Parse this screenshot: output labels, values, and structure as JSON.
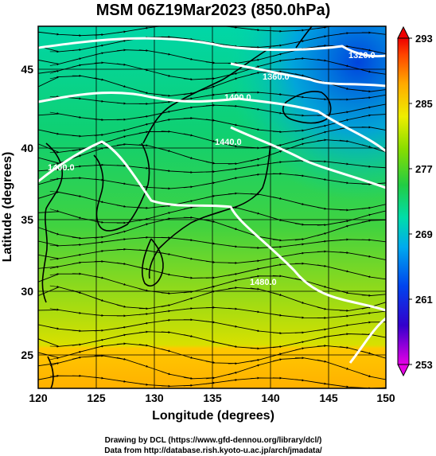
{
  "title": "MSM 06Z19Mar2023 (850.0hPa)",
  "axes": {
    "x_label": "Longitude (degrees)",
    "y_label": "Latitude  (degrees)",
    "x_ticks": [
      "120",
      "125",
      "130",
      "135",
      "140",
      "145",
      "150"
    ],
    "y_ticks": [
      "45",
      "40",
      "35",
      "30",
      "25"
    ]
  },
  "colorbar": {
    "ticks": [
      "293",
      "285",
      "277",
      "269",
      "261",
      "253"
    ]
  },
  "contour_labels": [
    "1320.0",
    "1360.0",
    "1400.0",
    "1440.0",
    "1400.0",
    "1480.0"
  ],
  "credits": {
    "line1": "Drawing by DCL (https://www.gfd-dennou.org/library/dcl/)",
    "line2": "Data from http://database.rish.kyoto-u.ac.jp/arch/jmadata/"
  },
  "chart_data": {
    "type": "heatmap",
    "title": "MSM 06Z19Mar2023 (850.0hPa)",
    "xlabel": "Longitude (degrees)",
    "ylabel": "Latitude  (degrees)",
    "xlim": [
      120,
      150
    ],
    "ylim": [
      22.4,
      47.6
    ],
    "xticks": [
      120,
      125,
      130,
      135,
      140,
      145,
      150
    ],
    "yticks": [
      25,
      30,
      35,
      40,
      45
    ],
    "grid": true,
    "colorbar": {
      "range": [
        253,
        293
      ],
      "ticks": [
        293,
        285,
        277,
        269,
        261,
        253
      ],
      "colors": [
        "#e600e6",
        "#0000dd",
        "#0077ff",
        "#00cccc",
        "#00dd77",
        "#22cc22",
        "#99dd00",
        "#ffee00",
        "#ffaa00",
        "#ff5500",
        "#ee0000"
      ]
    },
    "contours": [
      {
        "label": "1320.0",
        "level": 1320
      },
      {
        "label": "1360.0",
        "level": 1360
      },
      {
        "label": "1400.0",
        "level": 1400
      },
      {
        "label": "1440.0",
        "level": 1440
      },
      {
        "label": "1480.0",
        "level": 1480
      }
    ],
    "overlays": [
      "coastlines",
      "wind streamlines"
    ]
  }
}
